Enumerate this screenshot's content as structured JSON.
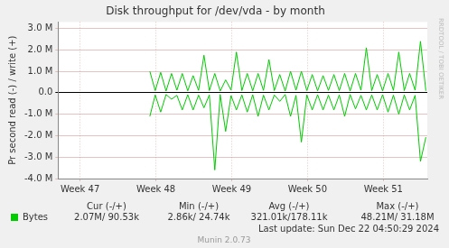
{
  "chart_data": {
    "type": "line",
    "title": "Disk throughput for /dev/vda - by month",
    "y_label": "Pr second read (-) / write (+)",
    "x": [
      47.92,
      47.991,
      48.063,
      48.134,
      48.206,
      48.277,
      48.348,
      48.42,
      48.491,
      48.563,
      48.634,
      48.705,
      48.777,
      48.848,
      48.92,
      48.991,
      49.062,
      49.134,
      49.205,
      49.277,
      49.348,
      49.419,
      49.491,
      49.562,
      49.634,
      49.705,
      49.776,
      49.848,
      49.919,
      49.991,
      50.062,
      50.133,
      50.205,
      50.276,
      50.348,
      50.419,
      50.49,
      50.562,
      50.633,
      50.705,
      50.776,
      50.847,
      50.919,
      50.99,
      51.062,
      51.133,
      51.204,
      51.276,
      51.347,
      51.419,
      51.49,
      51.561
    ],
    "series": [
      {
        "name": "Bytes",
        "color": "#00cc00",
        "values": [
          1000000,
          100000,
          950000,
          80000,
          900000,
          120000,
          900000,
          90000,
          800000,
          110000,
          1750000,
          100000,
          900000,
          80000,
          600000,
          130000,
          1900000,
          100000,
          900000,
          90000,
          900000,
          110000,
          1550000,
          100000,
          850000,
          80000,
          1000000,
          120000,
          1000000,
          100000,
          850000,
          90000,
          800000,
          110000,
          850000,
          100000,
          900000,
          80000,
          900000,
          120000,
          2100000,
          100000,
          850000,
          90000,
          900000,
          110000,
          1900000,
          100000,
          900000,
          120000,
          2400000,
          90530
        ]
      },
      {
        "color": "#00cc00",
        "values": [
          -1100000,
          -100000,
          -900000,
          -80000,
          -300000,
          -120000,
          -800000,
          -90000,
          -800000,
          -110000,
          -700000,
          -100000,
          -3600000,
          -80000,
          -1800000,
          -130000,
          -800000,
          -100000,
          -900000,
          -90000,
          -1100000,
          -110000,
          -800000,
          -100000,
          -400000,
          -80000,
          -1100000,
          -120000,
          -2300000,
          -100000,
          -800000,
          -90000,
          -800000,
          -110000,
          -800000,
          -100000,
          -1100000,
          -80000,
          -750000,
          -120000,
          -800000,
          -100000,
          -800000,
          -90000,
          -900000,
          -110000,
          -1000000,
          -100000,
          -800000,
          -120000,
          -3200000,
          -2070000
        ]
      }
    ],
    "xlim": [
      46.71,
      51.58
    ],
    "xticks": [
      {
        "value": 47,
        "label": "Week 47"
      },
      {
        "value": 48,
        "label": "Week 48"
      },
      {
        "value": 49,
        "label": "Week 49"
      },
      {
        "value": 50,
        "label": "Week 50"
      },
      {
        "value": 51,
        "label": "Week 51"
      }
    ],
    "ylim": [
      -4000000,
      3300000
    ],
    "yticks": [
      {
        "value": -4000000,
        "label": "-4.0 M"
      },
      {
        "value": -3000000,
        "label": "-3.0 M"
      },
      {
        "value": -2000000,
        "label": "-2.0 M"
      },
      {
        "value": -1000000,
        "label": "-1.0 M"
      },
      {
        "value": 0,
        "label": "0.0"
      },
      {
        "value": 1000000,
        "label": "1.0 M"
      },
      {
        "value": 2000000,
        "label": "2.0 M"
      },
      {
        "value": 3000000,
        "label": "3.0 M"
      }
    ],
    "grid": true,
    "stats": {
      "headers": [
        "Cur (-/+)",
        "Min (-/+)",
        "Avg (-/+)",
        "Max (-/+)"
      ],
      "rows": [
        {
          "label": "Bytes",
          "values": [
            "2.07M/ 90.53k",
            "2.86k/ 24.74k",
            "321.01k/178.11k",
            "48.21M/ 31.18M"
          ]
        }
      ]
    },
    "annotations": [
      "Last update: Sun Dec 22 04:50:29 2024",
      "Munin 2.0.73",
      "RRDTOOL / TOBI OETIKER"
    ]
  }
}
